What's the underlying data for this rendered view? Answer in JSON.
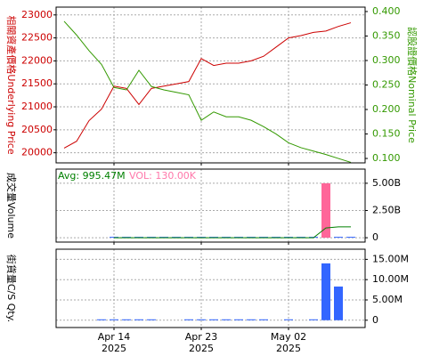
{
  "chart_data": [
    {
      "type": "line",
      "y_label": "相關資產價格Underlying Price",
      "y2_label": "認股證價格Nominal Price",
      "ylim": [
        19780,
        23170
      ],
      "yticks": [
        20000,
        20500,
        21000,
        21500,
        22000,
        22500,
        23000
      ],
      "y2lim": [
        0.091,
        0.409
      ],
      "y2ticks": [
        {
          "value": 0.1,
          "label": "0.100"
        },
        {
          "value": 0.15,
          "label": "0.150"
        },
        {
          "value": 0.2,
          "label": "0.200"
        },
        {
          "value": 0.25,
          "label": "0.250"
        },
        {
          "value": 0.3,
          "label": "0.300"
        },
        {
          "value": 0.35,
          "label": "0.350"
        },
        {
          "value": 0.4,
          "label": "0.400"
        }
      ],
      "grid": true,
      "series": [
        {
          "name": "Underlying Price",
          "color": "#cc0000",
          "values": [
            20100,
            20250,
            20700,
            20950,
            21450,
            21400,
            21050,
            21400,
            21450,
            21500,
            21550,
            22050,
            21900,
            21950,
            21950,
            22000,
            22100,
            22300,
            22500,
            22550,
            22620,
            22650,
            22750,
            22830
          ]
        },
        {
          "name": "Nominal Price",
          "color": "#339900",
          "axis": "y2",
          "values": [
            0.38,
            0.352,
            0.32,
            0.292,
            0.245,
            0.24,
            0.28,
            0.247,
            0.24,
            0.235,
            0.23,
            0.178,
            0.195,
            0.185,
            0.185,
            0.178,
            0.165,
            0.15,
            0.132,
            0.122,
            0.115,
            0.108,
            0.1,
            0.092
          ]
        }
      ]
    },
    {
      "type": "bar",
      "y_label": "成交量Volume",
      "annotations": [
        {
          "text": "Avg: 995.47M",
          "color": "#008000"
        },
        {
          "text": "VOL: 130.00K",
          "color": "#ff77aa"
        }
      ],
      "ylim": [
        -400000000,
        6300000000
      ],
      "yticks": [
        {
          "value": 0,
          "label": "0"
        },
        {
          "value": 2500000000,
          "label": "2.50B"
        },
        {
          "value": 5000000000,
          "label": "5.00B"
        }
      ],
      "grid": true,
      "series": [
        {
          "name": "Volume",
          "color": "#3366ff",
          "colors": [
            null,
            null,
            null,
            null,
            null,
            null,
            null,
            null,
            null,
            null,
            null,
            null,
            null,
            null,
            null,
            null,
            null,
            null,
            null,
            null,
            null,
            "#ff6699",
            null,
            null
          ],
          "values": [
            null,
            null,
            null,
            null,
            0,
            0,
            0,
            0,
            0,
            0,
            0,
            0,
            0,
            0,
            0,
            0,
            0,
            0,
            0,
            0,
            0,
            5000000000,
            50000000,
            50000000
          ]
        },
        {
          "name": "Avg",
          "color": "#008000",
          "line": true,
          "values": [
            null,
            null,
            null,
            null,
            0,
            0,
            0,
            0,
            0,
            0,
            0,
            0,
            0,
            0,
            0,
            0,
            0,
            0,
            0,
            0,
            0,
            900000000,
            995470000,
            995470000
          ]
        }
      ]
    },
    {
      "type": "bar",
      "y_label": "街貨量C/S Qty.",
      "categories": [
        null,
        null,
        null,
        null,
        [
          "Apr 14",
          "2025"
        ],
        null,
        null,
        null,
        null,
        null,
        null,
        [
          "Apr 23",
          "2025"
        ],
        null,
        null,
        null,
        null,
        null,
        null,
        [
          "May 02",
          "2025"
        ],
        null,
        null,
        null,
        null,
        null
      ],
      "ylim": [
        -1800000,
        17500000
      ],
      "yticks": [
        {
          "value": 0,
          "label": "0"
        },
        {
          "value": 5000000,
          "label": "5.00M"
        },
        {
          "value": 10000000,
          "label": "10.00M"
        },
        {
          "value": 15000000,
          "label": "15.00M"
        }
      ],
      "grid": true,
      "series": [
        {
          "name": "C/S Qty.",
          "color": "#3366ff",
          "values": [
            null,
            null,
            null,
            100000,
            100000,
            100000,
            100000,
            100000,
            null,
            null,
            100000,
            100000,
            100000,
            100000,
            100000,
            100000,
            100000,
            null,
            100000,
            null,
            100000,
            14000000,
            8300000,
            null
          ]
        }
      ]
    }
  ]
}
